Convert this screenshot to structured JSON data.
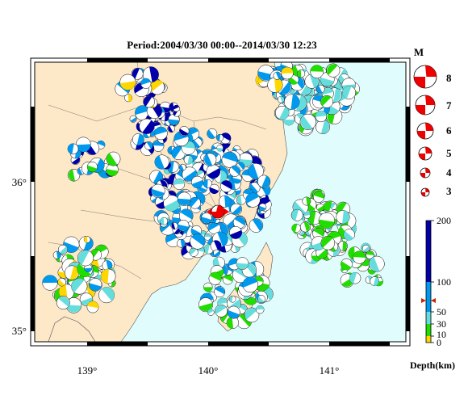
{
  "title": "Period:2004/03/30 00:00--2014/03/30 12:23",
  "lon_ticks": [
    "139°",
    "140°",
    "141°"
  ],
  "lat_ticks": [
    "36°",
    "35°"
  ],
  "magnitude_legend": {
    "header": "M",
    "labels": [
      "8",
      "7",
      "6",
      "5",
      "4",
      "3"
    ]
  },
  "depth_scale": {
    "labels": [
      "200",
      "100",
      "50",
      "30",
      "10",
      "0"
    ],
    "unit_label": "Depth(km)",
    "bands": [
      {
        "from": 0,
        "to": 10,
        "color": "#ffd700"
      },
      {
        "from": 10,
        "to": 30,
        "color": "#22dd00"
      },
      {
        "from": 30,
        "to": 50,
        "color": "#66dddd"
      },
      {
        "from": 50,
        "to": 100,
        "color": "#0099ee"
      },
      {
        "from": 100,
        "to": 200,
        "color": "#0000aa"
      }
    ]
  },
  "colors": {
    "land": "#fde8c8",
    "sea": "#e0fcfc",
    "mechanism": "#ee0000",
    "frame": "#000000"
  },
  "main_event_marker": "red focal mechanism with red triangle markers"
}
